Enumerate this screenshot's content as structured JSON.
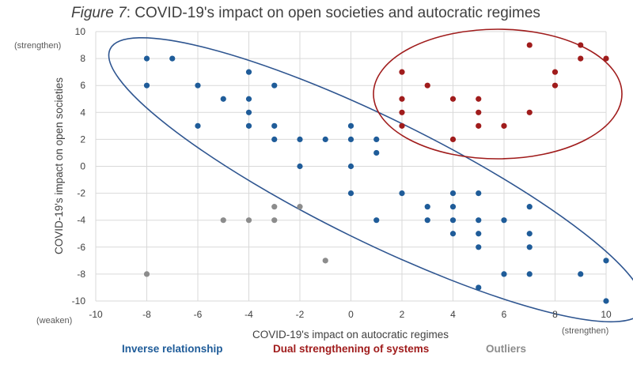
{
  "title": {
    "prefix": "Figure 7",
    "rest": ": COVID-19's impact on open societies and autocratic regimes"
  },
  "chart_data": {
    "type": "scatter",
    "title": "Figure 7: COVID-19's impact on open societies and autocratic regimes",
    "xlabel": "COVID-19's impact on autocratic regimes",
    "ylabel": "COVID-19's impact on open societies",
    "xlim": [
      -10,
      10
    ],
    "ylim": [
      -10,
      10
    ],
    "xticks": [
      "-10",
      "-8",
      "-6",
      "-4",
      "-2",
      "0",
      "2",
      "4",
      "6",
      "8",
      "10"
    ],
    "yticks": [
      "10",
      "8",
      "6",
      "4",
      "2",
      "0",
      "-2",
      "-4",
      "-6",
      "-8",
      "-10"
    ],
    "grid": "major, both axes",
    "annotations": {
      "y_top": "(strengthen)",
      "y_bottom": "(weaken)",
      "x_right": "(strengthen)"
    },
    "series": [
      {
        "name": "Inverse relationship",
        "color": "#1f5c99",
        "points": [
          [
            -8,
            8
          ],
          [
            -7,
            8
          ],
          [
            -8,
            6
          ],
          [
            -6,
            6
          ],
          [
            -6,
            3
          ],
          [
            -5,
            5
          ],
          [
            -4,
            7
          ],
          [
            -4,
            5
          ],
          [
            -4,
            4
          ],
          [
            -4,
            3
          ],
          [
            -3,
            6
          ],
          [
            -3,
            3
          ],
          [
            -3,
            2
          ],
          [
            -2,
            2
          ],
          [
            -2,
            0
          ],
          [
            -1,
            2
          ],
          [
            0,
            3
          ],
          [
            0,
            2
          ],
          [
            0,
            0
          ],
          [
            0,
            -2
          ],
          [
            1,
            2
          ],
          [
            1,
            1
          ],
          [
            1,
            -4
          ],
          [
            2,
            -2
          ],
          [
            3,
            -3
          ],
          [
            3,
            -4
          ],
          [
            4,
            -2
          ],
          [
            4,
            -3
          ],
          [
            4,
            -4
          ],
          [
            4,
            -5
          ],
          [
            5,
            -2
          ],
          [
            5,
            -4
          ],
          [
            5,
            -5
          ],
          [
            5,
            -6
          ],
          [
            5,
            -9
          ],
          [
            6,
            -4
          ],
          [
            6,
            -8
          ],
          [
            7,
            -3
          ],
          [
            7,
            -5
          ],
          [
            7,
            -6
          ],
          [
            7,
            -8
          ],
          [
            9,
            -8
          ],
          [
            10,
            -7
          ],
          [
            10,
            -10
          ]
        ]
      },
      {
        "name": "Dual strengthening of systems",
        "color": "#a01c1c",
        "points": [
          [
            2,
            7
          ],
          [
            2,
            5
          ],
          [
            2,
            4
          ],
          [
            2,
            3
          ],
          [
            3,
            6
          ],
          [
            4,
            5
          ],
          [
            4,
            2
          ],
          [
            5,
            5
          ],
          [
            5,
            4
          ],
          [
            5,
            3
          ],
          [
            6,
            3
          ],
          [
            7,
            9
          ],
          [
            7,
            4
          ],
          [
            8,
            7
          ],
          [
            8,
            6
          ],
          [
            9,
            9
          ],
          [
            9,
            8
          ],
          [
            10,
            8
          ]
        ]
      },
      {
        "name": "Outliers",
        "color": "#8c8c8c",
        "points": [
          [
            -8,
            -8
          ],
          [
            -5,
            -4
          ],
          [
            -4,
            -4
          ],
          [
            -3,
            -3
          ],
          [
            -3,
            -4
          ],
          [
            -2,
            -3
          ],
          [
            -1,
            -7
          ]
        ]
      }
    ]
  }
}
